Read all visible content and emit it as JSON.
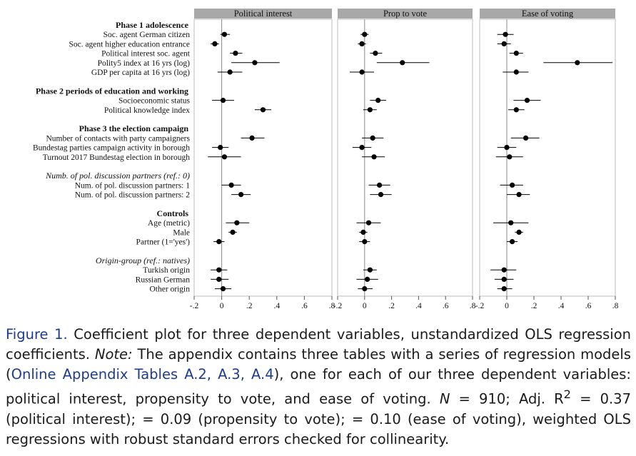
{
  "chart_data": {
    "type": "scatter",
    "panels": [
      {
        "title": "Political interest"
      },
      {
        "title": "Prop to vote"
      },
      {
        "title": "Ease of voting"
      }
    ],
    "xlim": [
      -0.2,
      0.8
    ],
    "xticks": [
      -0.2,
      0,
      0.2,
      0.4,
      0.6,
      0.8
    ],
    "xtick_labels": [
      "-.2",
      "0",
      ".2",
      ".4",
      ".6",
      ".8"
    ],
    "rows": [
      {
        "label": "Phase 1 adolescence",
        "kind": "header"
      },
      {
        "label": "Soc. agent German citizen",
        "kind": "var",
        "est": [
          [
            0.02,
            -0.01,
            0.06
          ],
          [
            0.0,
            -0.03,
            0.03
          ],
          [
            -0.01,
            -0.07,
            0.05
          ]
        ]
      },
      {
        "label": "Soc. agent higher education entrance",
        "kind": "var",
        "est": [
          [
            -0.05,
            -0.08,
            -0.02
          ],
          [
            -0.02,
            -0.05,
            0.01
          ],
          [
            -0.02,
            -0.07,
            0.03
          ]
        ]
      },
      {
        "label": "Political interest soc. agent",
        "kind": "var",
        "est": [
          [
            0.1,
            0.06,
            0.15
          ],
          [
            0.08,
            0.04,
            0.13
          ],
          [
            0.07,
            0.02,
            0.12
          ]
        ]
      },
      {
        "label": "Polity5 index at 16 yrs (log)",
        "kind": "var",
        "est": [
          [
            0.24,
            0.07,
            0.42
          ],
          [
            0.28,
            0.09,
            0.48
          ],
          [
            0.52,
            0.27,
            0.78
          ]
        ]
      },
      {
        "label": "GDP per capita at 16 yrs (log)",
        "kind": "var",
        "est": [
          [
            0.06,
            -0.03,
            0.15
          ],
          [
            -0.02,
            -0.11,
            0.07
          ],
          [
            0.07,
            -0.03,
            0.16
          ]
        ]
      },
      {
        "label": "",
        "kind": "gap"
      },
      {
        "label": "Phase 2 periods of education and working",
        "kind": "header"
      },
      {
        "label": "Socioeconomic status",
        "kind": "var",
        "est": [
          [
            0.01,
            -0.07,
            0.09
          ],
          [
            0.1,
            0.04,
            0.16
          ],
          [
            0.15,
            0.05,
            0.25
          ]
        ]
      },
      {
        "label": "Political knowledge index",
        "kind": "var",
        "est": [
          [
            0.3,
            0.24,
            0.36
          ],
          [
            0.04,
            -0.01,
            0.09
          ],
          [
            0.07,
            0.01,
            0.13
          ]
        ]
      },
      {
        "label": "",
        "kind": "gap"
      },
      {
        "label": "Phase 3 the election campaign",
        "kind": "header"
      },
      {
        "label": "Number of contacts with party campaigners",
        "kind": "var",
        "est": [
          [
            0.22,
            0.14,
            0.31
          ],
          [
            0.06,
            -0.02,
            0.14
          ],
          [
            0.14,
            0.03,
            0.24
          ]
        ]
      },
      {
        "label": "Bundestag parties campaign activity in borough",
        "kind": "var",
        "est": [
          [
            -0.01,
            -0.07,
            0.05
          ],
          [
            -0.02,
            -0.09,
            0.05
          ],
          [
            0.0,
            -0.07,
            0.07
          ]
        ]
      },
      {
        "label": "Turnout 2017 Bundestag election in borough",
        "kind": "var",
        "est": [
          [
            0.02,
            -0.1,
            0.14
          ],
          [
            0.07,
            -0.02,
            0.15
          ],
          [
            0.02,
            -0.08,
            0.12
          ]
        ]
      },
      {
        "label": "",
        "kind": "gap"
      },
      {
        "label": "Numb. of pol. discussion partners (ref.: 0)",
        "kind": "subheader"
      },
      {
        "label": "Num. of pol. discussion partners: 1",
        "kind": "var",
        "est": [
          [
            0.07,
            0.0,
            0.14
          ],
          [
            0.11,
            0.03,
            0.19
          ],
          [
            0.04,
            -0.05,
            0.12
          ]
        ]
      },
      {
        "label": "Num. of pol. discussion partners: 2",
        "kind": "var",
        "est": [
          [
            0.14,
            0.07,
            0.21
          ],
          [
            0.12,
            0.04,
            0.2
          ],
          [
            0.09,
            0.0,
            0.17
          ]
        ]
      },
      {
        "label": "",
        "kind": "gap"
      },
      {
        "label": "Controls",
        "kind": "header"
      },
      {
        "label": "Age (metric)",
        "kind": "var",
        "est": [
          [
            0.11,
            0.03,
            0.2
          ],
          [
            0.03,
            -0.06,
            0.12
          ],
          [
            0.03,
            -0.1,
            0.16
          ]
        ]
      },
      {
        "label": "Male",
        "kind": "var",
        "est": [
          [
            0.08,
            0.05,
            0.11
          ],
          [
            -0.01,
            -0.04,
            0.02
          ],
          [
            0.09,
            0.06,
            0.12
          ]
        ]
      },
      {
        "label": "Partner (1='yes')",
        "kind": "var",
        "est": [
          [
            -0.02,
            -0.06,
            0.02
          ],
          [
            0.0,
            -0.04,
            0.04
          ],
          [
            0.04,
            0.0,
            0.08
          ]
        ]
      },
      {
        "label": "",
        "kind": "gap"
      },
      {
        "label": "Origin-group (ref.: natives)",
        "kind": "subheader"
      },
      {
        "label": "Turkish origin",
        "kind": "var",
        "est": [
          [
            -0.02,
            -0.08,
            0.04
          ],
          [
            0.04,
            -0.01,
            0.09
          ],
          [
            -0.02,
            -0.12,
            0.07
          ]
        ]
      },
      {
        "label": "Russian German",
        "kind": "var",
        "est": [
          [
            -0.02,
            -0.08,
            0.05
          ],
          [
            0.02,
            -0.06,
            0.1
          ],
          [
            -0.02,
            -0.09,
            0.05
          ]
        ]
      },
      {
        "label": "Other origin",
        "kind": "var",
        "est": [
          [
            0.01,
            -0.05,
            0.07
          ],
          [
            0.0,
            -0.05,
            0.06
          ],
          [
            -0.02,
            -0.07,
            0.04
          ]
        ]
      }
    ],
    "grid": false,
    "reference_line_x": 0
  },
  "caption": {
    "label": "Figure 1.",
    "text1": " Coefficient plot for three dependent variables, unstandardized OLS regression coefficients. ",
    "note_label": "Note:",
    "text2": " The appendix contains three tables with a series of regression models (",
    "link_text": "Online Appendix Tables A.2, A.3, A.4",
    "text3": "), one for each of our three dependent variables: political interest, propensity to vote, and ease of voting. ",
    "n_label": "N",
    "text4": " = 910; Adj. R",
    "r_sup": "2",
    "text5": " = 0.37 (political interest); = 0.09 (propensity to vote); = 0.10 (ease of voting), weighted OLS regressions with robust standard errors checked for collinearity."
  },
  "colors": {
    "panel_header": "#a8a8a8",
    "point": "#000000",
    "axis": "#555555",
    "caption_blue": "#1f3c88"
  }
}
